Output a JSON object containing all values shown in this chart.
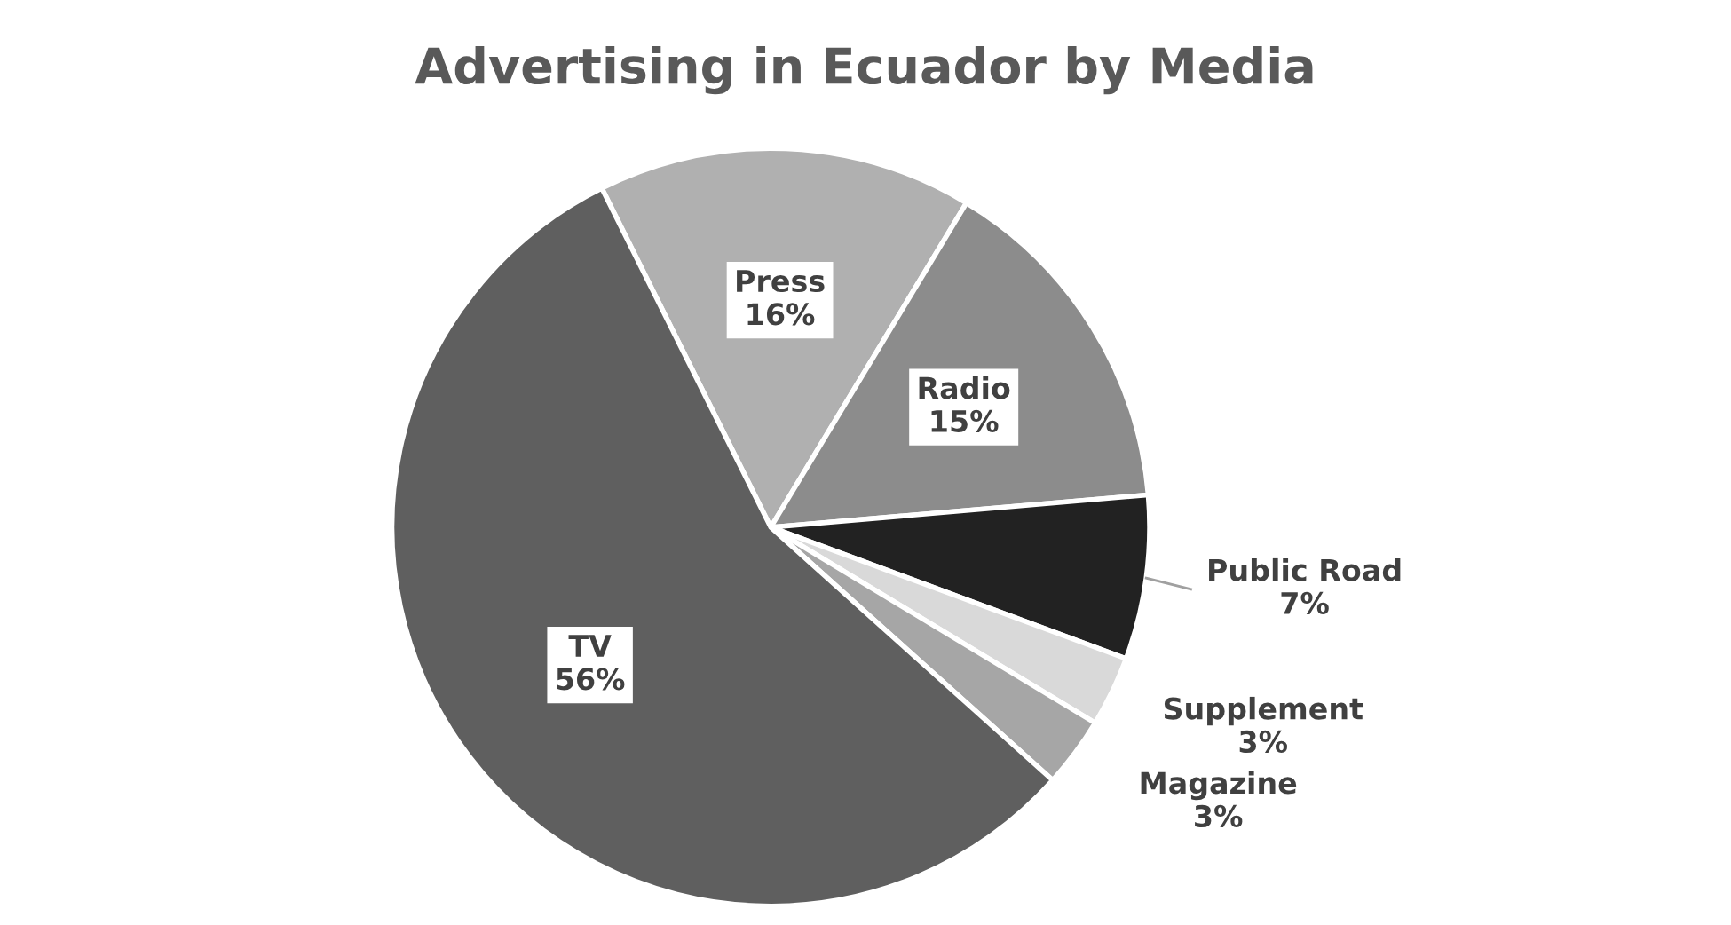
{
  "chart_data": {
    "type": "pie",
    "title": "Advertising in Ecuador by Media",
    "categories": [
      "Press",
      "Radio",
      "Public Road",
      "Supplement",
      "Magazine",
      "TV"
    ],
    "values": [
      16,
      15,
      7,
      3,
      3,
      56
    ],
    "value_labels": [
      "16%",
      "15%",
      "7%",
      "3%",
      "3%",
      "56%"
    ],
    "colors": [
      "#b0b0b0",
      "#8c8c8c",
      "#222222",
      "#d9d9d9",
      "#a6a6a6",
      "#5f5f5f"
    ],
    "legend": false
  }
}
